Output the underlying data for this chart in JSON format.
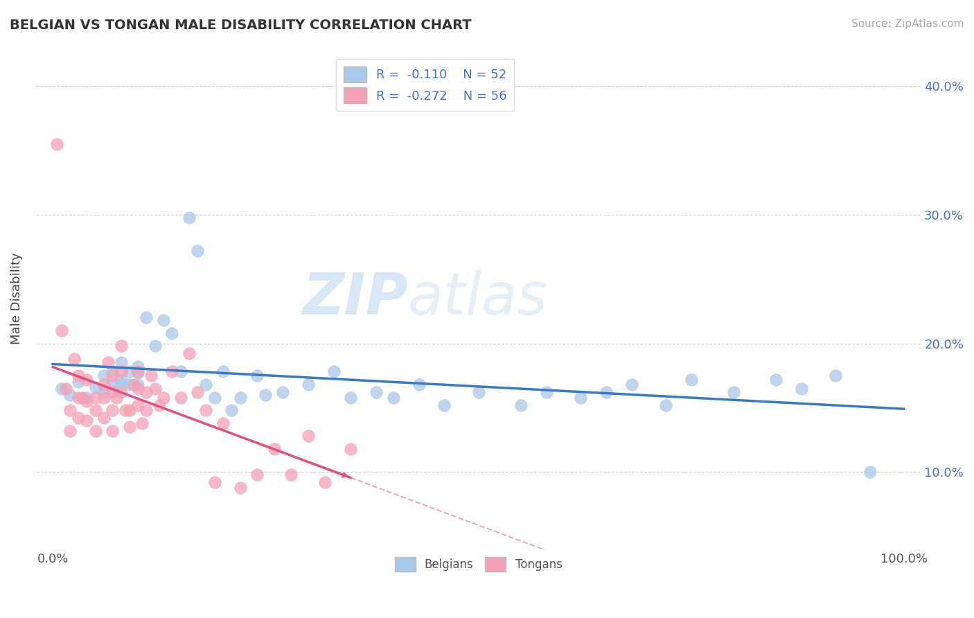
{
  "title": "BELGIAN VS TONGAN MALE DISABILITY CORRELATION CHART",
  "source": "Source: ZipAtlas.com",
  "ylabel": "Male Disability",
  "xlim": [
    -0.02,
    1.02
  ],
  "ylim": [
    0.04,
    0.43
  ],
  "yticks": [
    0.1,
    0.2,
    0.3,
    0.4
  ],
  "ytick_labels": [
    "10.0%",
    "20.0%",
    "30.0%",
    "40.0%"
  ],
  "xticks": [
    0.0,
    1.0
  ],
  "xtick_labels": [
    "0.0%",
    "100.0%"
  ],
  "belgian_color": "#a8c8e8",
  "tongan_color": "#f4a0b5",
  "belgian_line_color": "#3a7abf",
  "tongan_line_color": "#e05080",
  "R_belgian": -0.11,
  "N_belgian": 52,
  "R_tongan": -0.272,
  "N_tongan": 56,
  "watermark_zip": "ZIP",
  "watermark_atlas": "atlas",
  "belgian_x": [
    0.01,
    0.02,
    0.03,
    0.04,
    0.05,
    0.06,
    0.06,
    0.07,
    0.07,
    0.08,
    0.08,
    0.08,
    0.09,
    0.09,
    0.1,
    0.1,
    0.1,
    0.11,
    0.12,
    0.13,
    0.14,
    0.15,
    0.16,
    0.17,
    0.18,
    0.19,
    0.2,
    0.21,
    0.22,
    0.24,
    0.25,
    0.27,
    0.3,
    0.33,
    0.35,
    0.38,
    0.4,
    0.43,
    0.46,
    0.5,
    0.55,
    0.58,
    0.62,
    0.65,
    0.68,
    0.72,
    0.75,
    0.8,
    0.85,
    0.88,
    0.92,
    0.96
  ],
  "belgian_y": [
    0.165,
    0.16,
    0.17,
    0.158,
    0.166,
    0.175,
    0.162,
    0.178,
    0.168,
    0.185,
    0.168,
    0.172,
    0.178,
    0.168,
    0.177,
    0.168,
    0.182,
    0.22,
    0.198,
    0.218,
    0.208,
    0.178,
    0.298,
    0.272,
    0.168,
    0.158,
    0.178,
    0.148,
    0.158,
    0.175,
    0.16,
    0.162,
    0.168,
    0.178,
    0.158,
    0.162,
    0.158,
    0.168,
    0.152,
    0.162,
    0.152,
    0.162,
    0.158,
    0.162,
    0.168,
    0.152,
    0.172,
    0.162,
    0.172,
    0.165,
    0.175,
    0.1
  ],
  "tongan_x": [
    0.005,
    0.01,
    0.015,
    0.02,
    0.02,
    0.025,
    0.03,
    0.03,
    0.03,
    0.035,
    0.04,
    0.04,
    0.04,
    0.05,
    0.05,
    0.05,
    0.06,
    0.06,
    0.06,
    0.065,
    0.07,
    0.07,
    0.07,
    0.07,
    0.075,
    0.08,
    0.08,
    0.08,
    0.085,
    0.09,
    0.09,
    0.095,
    0.1,
    0.1,
    0.1,
    0.105,
    0.11,
    0.11,
    0.115,
    0.12,
    0.125,
    0.13,
    0.14,
    0.15,
    0.16,
    0.17,
    0.18,
    0.19,
    0.2,
    0.22,
    0.24,
    0.26,
    0.28,
    0.3,
    0.32,
    0.35
  ],
  "tongan_y": [
    0.355,
    0.21,
    0.165,
    0.148,
    0.132,
    0.188,
    0.158,
    0.142,
    0.175,
    0.158,
    0.172,
    0.155,
    0.14,
    0.158,
    0.148,
    0.132,
    0.168,
    0.158,
    0.142,
    0.185,
    0.175,
    0.162,
    0.148,
    0.132,
    0.158,
    0.198,
    0.178,
    0.162,
    0.148,
    0.148,
    0.135,
    0.168,
    0.178,
    0.165,
    0.152,
    0.138,
    0.162,
    0.148,
    0.175,
    0.165,
    0.152,
    0.158,
    0.178,
    0.158,
    0.192,
    0.162,
    0.148,
    0.092,
    0.138,
    0.088,
    0.098,
    0.118,
    0.098,
    0.128,
    0.092,
    0.118
  ]
}
